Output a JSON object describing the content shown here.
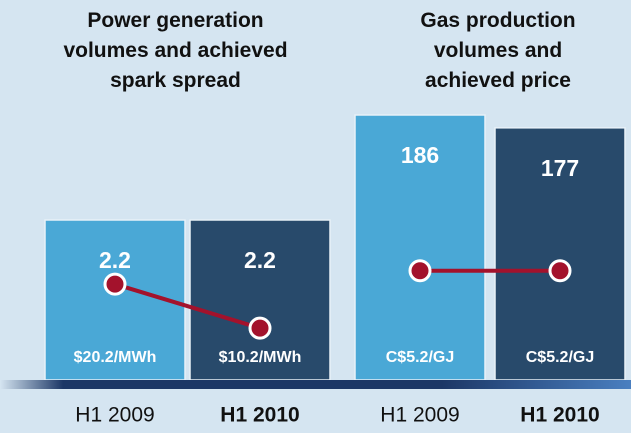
{
  "chart_data": [
    {
      "type": "bar",
      "title": "Power generation volumes and achieved spark spread",
      "categories": [
        "H1 2009",
        "H1 2010"
      ],
      "values": [
        2.2,
        2.2
      ],
      "colors": [
        "#4aa8d6",
        "#284a6b"
      ],
      "line": {
        "values": [
          20.2,
          10.2
        ],
        "value_labels": [
          "$20.2/MWh",
          "$10.2/MWh"
        ],
        "color": "#a3122c"
      }
    },
    {
      "type": "bar",
      "title": "Gas production volumes and achieved price",
      "categories": [
        "H1 2009",
        "H1 2010"
      ],
      "values": [
        186,
        177
      ],
      "colors": [
        "#4aa8d6",
        "#284a6b"
      ],
      "line": {
        "values": [
          5.2,
          5.2
        ],
        "value_labels": [
          "C$5.2/GJ",
          "C$5.2/GJ"
        ],
        "color": "#a3122c"
      }
    }
  ]
}
